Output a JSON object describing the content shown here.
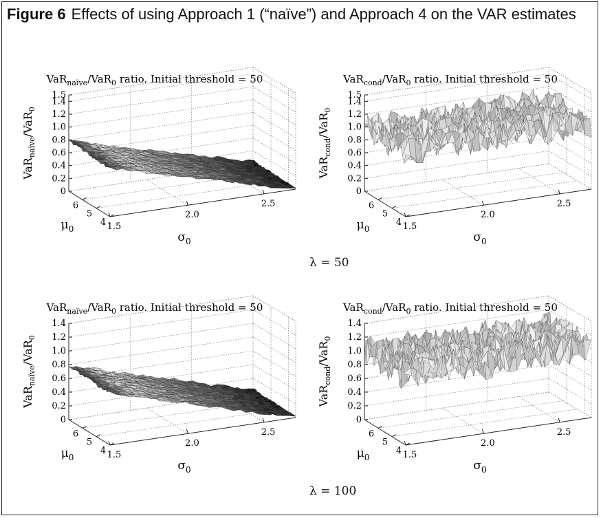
{
  "figure": {
    "label": "Figure 6",
    "caption": "Effects of using Approach 1 (“naïve”) and Approach 4 on the VAR estimates"
  },
  "panels": [
    {
      "title": "VaR",
      "title_sub": "naïve",
      "title_mid": "/VaR",
      "title_sub0": "0",
      "title_rest": " ratio. Initial threshold = 50",
      "zlabel_main": "VaR",
      "zlabel_sub": "naïve",
      "zlabel_mid": "/VaR",
      "zlabel_sub0": "0",
      "lambda": "λ = 50"
    },
    {
      "title": "VaR",
      "title_sub": "cond",
      "title_mid": "/VaR",
      "title_sub0": "0",
      "title_rest": " ratio. Initial threshold = 50",
      "zlabel_main": "VaR",
      "zlabel_sub": "cond",
      "zlabel_mid": "/VaR",
      "zlabel_sub0": "0",
      "lambda": ""
    },
    {
      "title": "VaR",
      "title_sub": "naïve",
      "title_mid": "/VaR",
      "title_sub0": "0",
      "title_rest": " ratio. Initial threshold = 50",
      "zlabel_main": "VaR",
      "zlabel_sub": "naïve",
      "zlabel_mid": "/VaR",
      "zlabel_sub0": "0",
      "lambda": "λ = 100"
    },
    {
      "title": "VaR",
      "title_sub": "cond",
      "title_mid": "/VaR",
      "title_sub0": "0",
      "title_rest": " ratio. Initial threshold = 50",
      "zlabel_main": "VaR",
      "zlabel_sub": "cond",
      "zlabel_mid": "/VaR",
      "zlabel_sub0": "0",
      "lambda": ""
    }
  ],
  "chart_data": [
    {
      "type": "surface",
      "x_axis": {
        "symbol": "μ",
        "sub": "0",
        "range": [
          4,
          7
        ],
        "ticks": [
          "4",
          "5",
          "6"
        ]
      },
      "y_axis": {
        "symbol": "σ",
        "sub": "0",
        "range": [
          1.5,
          2.7
        ],
        "ticks": [
          "1.5",
          "2.0",
          "2.5"
        ]
      },
      "z_axis": {
        "range": [
          0,
          1.5
        ],
        "ticks": [
          "0",
          "0.2",
          "0.4",
          "0.6",
          "0.8",
          "1.0",
          "1.2",
          "1.4",
          "1.5"
        ]
      },
      "surface": "naive",
      "lambda": 50,
      "grid": true
    },
    {
      "type": "surface",
      "x_axis": {
        "symbol": "μ",
        "sub": "0",
        "range": [
          4,
          7
        ],
        "ticks": [
          "4",
          "5",
          "6"
        ]
      },
      "y_axis": {
        "symbol": "σ",
        "sub": "0",
        "range": [
          1.5,
          2.7
        ],
        "ticks": [
          "1.5",
          "2.0",
          "2.5"
        ]
      },
      "z_axis": {
        "range": [
          0,
          1.5
        ],
        "ticks": [
          "0",
          "0.2",
          "0.4",
          "0.6",
          "0.8",
          "1.0",
          "1.2",
          "1.4",
          "1.5"
        ]
      },
      "surface": "cond",
      "lambda": 50,
      "grid": true
    },
    {
      "type": "surface",
      "x_axis": {
        "symbol": "μ",
        "sub": "0",
        "range": [
          4,
          7
        ],
        "ticks": [
          "4",
          "5",
          "6"
        ]
      },
      "y_axis": {
        "symbol": "σ",
        "sub": "0",
        "range": [
          1.5,
          2.7
        ],
        "ticks": [
          "1.5",
          "2.0",
          "2.5"
        ]
      },
      "z_axis": {
        "range": [
          0,
          1.4
        ],
        "ticks": [
          "0",
          "0.2",
          "0.4",
          "0.6",
          "0.8",
          "1.0",
          "1.2",
          "1.4"
        ]
      },
      "surface": "naive",
      "lambda": 100,
      "grid": true
    },
    {
      "type": "surface",
      "x_axis": {
        "symbol": "μ",
        "sub": "0",
        "range": [
          4,
          7
        ],
        "ticks": [
          "4",
          "5",
          "6"
        ]
      },
      "y_axis": {
        "symbol": "σ",
        "sub": "0",
        "range": [
          1.5,
          2.7
        ],
        "ticks": [
          "1.5",
          "2.0",
          "2.5"
        ]
      },
      "z_axis": {
        "range": [
          0,
          1.4
        ],
        "ticks": [
          "0",
          "0.2",
          "0.4",
          "0.6",
          "0.8",
          "1.0",
          "1.2",
          "1.4"
        ]
      },
      "surface": "cond",
      "lambda": 100,
      "grid": true
    }
  ]
}
